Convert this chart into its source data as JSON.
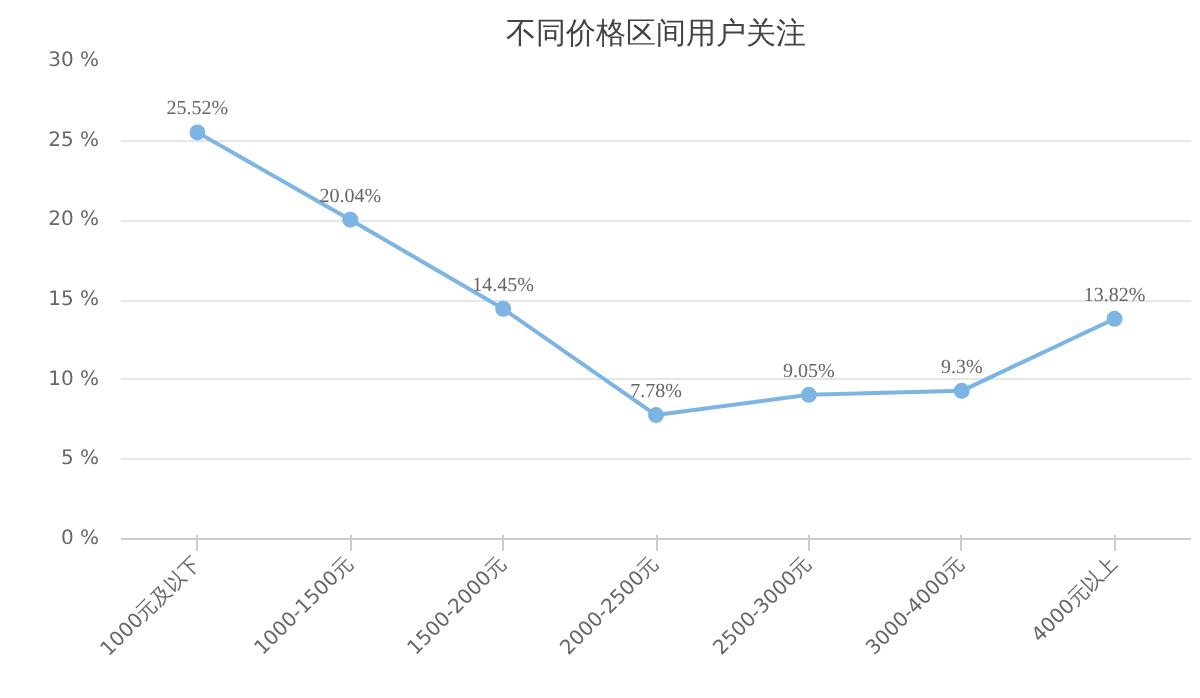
{
  "chart_data": {
    "type": "line",
    "title": "不同价格区间用户关注",
    "categories": [
      "1000元及以下",
      "1000-1500元",
      "1500-2000元",
      "2000-2500元",
      "2500-3000元",
      "3000-4000元",
      "4000元以上"
    ],
    "series": [
      {
        "color": "#7cb5e4",
        "values": [
          25.52,
          20.04,
          14.45,
          7.78,
          9.05,
          9.3,
          13.82
        ]
      }
    ],
    "value_labels": [
      "25.52%",
      "20.04%",
      "14.45%",
      "7.78%",
      "9.05%",
      "9.3%",
      "13.82%"
    ],
    "ylim": [
      0,
      30
    ],
    "yticks": [
      {
        "value": 0,
        "label": "0 %"
      },
      {
        "value": 5,
        "label": "5 %"
      },
      {
        "value": 10,
        "label": "10 %"
      },
      {
        "value": 15,
        "label": "15 %"
      },
      {
        "value": 20,
        "label": "20 %"
      },
      {
        "value": 25,
        "label": "25 %"
      },
      {
        "value": 30,
        "label": "30 %"
      }
    ],
    "grid": "y",
    "marker": "circle",
    "line_style": "solid"
  }
}
